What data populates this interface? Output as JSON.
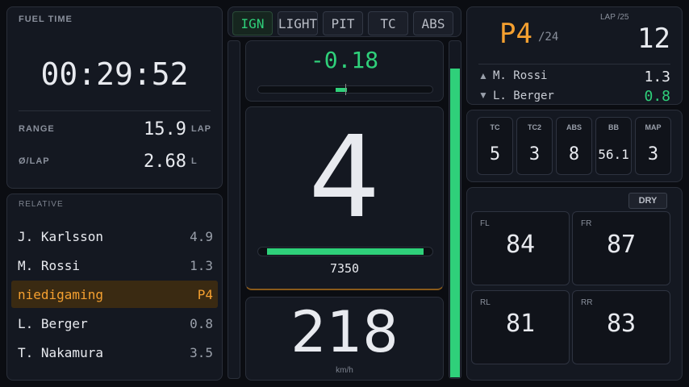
{
  "fuel": {
    "title": "FUEL TIME",
    "time": "00:29:52",
    "rows": [
      {
        "label": "RANGE",
        "value": "15.9",
        "unit": "LAP"
      },
      {
        "label": "Ø/LAP",
        "value": "2.68",
        "unit": "L"
      }
    ]
  },
  "relative": {
    "title": "RELATIVE",
    "rows": [
      {
        "name": "J. Karlsson",
        "value": "4.9",
        "highlight": false
      },
      {
        "name": "M. Rossi",
        "value": "1.3",
        "highlight": false
      },
      {
        "name": "niedigaming",
        "value": "P4",
        "highlight": true
      },
      {
        "name": "L. Berger",
        "value": "0.8",
        "highlight": false
      },
      {
        "name": "T. Nakamura",
        "value": "3.5",
        "highlight": false
      }
    ]
  },
  "buttons": [
    {
      "label": "IGN",
      "active": true
    },
    {
      "label": "LIGHT",
      "active": false
    },
    {
      "label": "PIT",
      "active": false
    },
    {
      "label": "TC",
      "active": false
    },
    {
      "label": "ABS",
      "active": false
    }
  ],
  "delta": "-0.18",
  "gear": "4",
  "rpm": "7350",
  "speed": "218",
  "speed_unit": "km/h",
  "position": {
    "value": "P4",
    "total": "/24",
    "lap_label": "LAP /25",
    "lap": "12",
    "ahead": {
      "name": "M. Rossi",
      "gap": "1.3"
    },
    "behind": {
      "name": "L. Berger",
      "gap": "0.8"
    }
  },
  "settings": [
    {
      "label": "TC",
      "value": "5"
    },
    {
      "label": "TC2",
      "value": "3"
    },
    {
      "label": "ABS",
      "value": "8"
    },
    {
      "label": "BB",
      "value": "56.1"
    },
    {
      "label": "MAP",
      "value": "3"
    }
  ],
  "tyres": {
    "compound": "DRY",
    "temps": [
      {
        "label": "FL",
        "value": "84"
      },
      {
        "label": "FR",
        "value": "87"
      },
      {
        "label": "RL",
        "value": "81"
      },
      {
        "label": "RR",
        "value": "83"
      }
    ]
  }
}
